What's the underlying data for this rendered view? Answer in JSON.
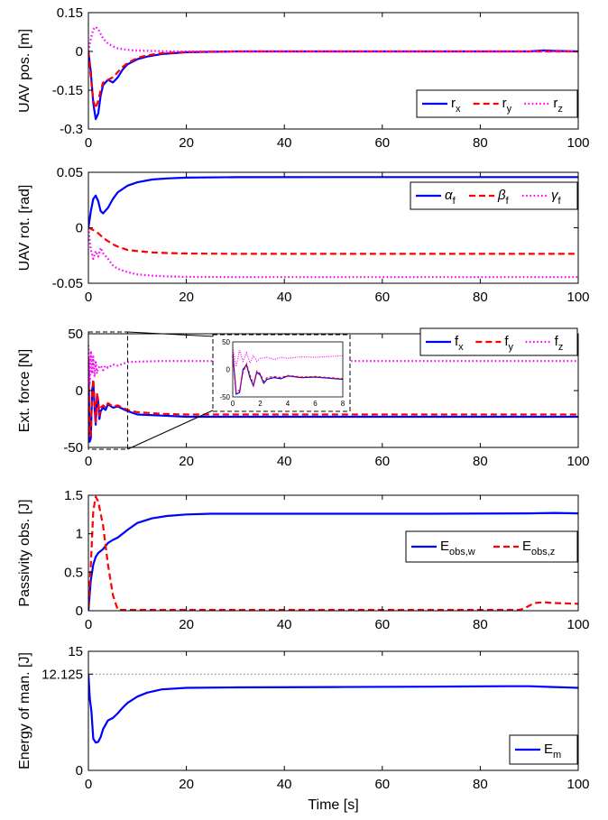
{
  "chart_data": [
    {
      "type": "line",
      "ylabel": "UAV pos. [m]",
      "xlabel": "",
      "xlim": [
        0,
        100
      ],
      "ylim": [
        -0.3,
        0.15
      ],
      "xticks": [
        "0",
        "20",
        "40",
        "60",
        "80",
        "100"
      ],
      "yticks": [
        "-0.3",
        "-0.15",
        "0",
        "0.15"
      ],
      "ytick_values": [
        -0.3,
        -0.15,
        0,
        0.15
      ],
      "legend_position": "bottom-right",
      "series": [
        {
          "name": "r",
          "sub": "x",
          "color": "#0000ff",
          "dash": "solid",
          "x": [
            0,
            0.5,
            1,
            1.5,
            2,
            2.5,
            3,
            4,
            5,
            6,
            7,
            8,
            10,
            12,
            15,
            20,
            30,
            50,
            70,
            90,
            93,
            95,
            100
          ],
          "y": [
            0,
            -0.08,
            -0.2,
            -0.262,
            -0.24,
            -0.17,
            -0.13,
            -0.11,
            -0.12,
            -0.1,
            -0.07,
            -0.05,
            -0.03,
            -0.02,
            -0.01,
            -0.003,
            0,
            0,
            0,
            0,
            0.004,
            0.002,
            0
          ]
        },
        {
          "name": "r",
          "sub": "y",
          "color": "#ff0000",
          "dash": "dashed",
          "x": [
            0,
            0.5,
            1,
            1.5,
            2,
            2.5,
            3,
            4,
            5,
            6,
            7,
            8,
            10,
            12,
            15,
            20,
            30,
            50,
            100
          ],
          "y": [
            0,
            -0.1,
            -0.19,
            -0.22,
            -0.19,
            -0.15,
            -0.12,
            -0.11,
            -0.1,
            -0.08,
            -0.06,
            -0.045,
            -0.025,
            -0.015,
            -0.007,
            -0.002,
            0,
            0,
            0
          ]
        },
        {
          "name": "r",
          "sub": "z",
          "color": "#ff00ff",
          "dash": "dotted",
          "x": [
            0,
            0.5,
            1,
            1.5,
            2,
            3,
            4,
            5,
            6,
            8,
            10,
            15,
            20,
            100
          ],
          "y": [
            0,
            0.05,
            0.085,
            0.095,
            0.085,
            0.05,
            0.03,
            0.02,
            0.012,
            0.006,
            0.003,
            0.001,
            0,
            0
          ]
        }
      ]
    },
    {
      "type": "line",
      "ylabel": "UAV rot. [rad]",
      "xlabel": "",
      "xlim": [
        0,
        100
      ],
      "ylim": [
        -0.05,
        0.05
      ],
      "xticks": [
        "0",
        "20",
        "40",
        "60",
        "80",
        "100"
      ],
      "yticks": [
        "-0.05",
        "0",
        "0.05"
      ],
      "ytick_values": [
        -0.05,
        0,
        0.05
      ],
      "legend_position": "top-right",
      "series": [
        {
          "name": "α",
          "sub": "f",
          "color": "#0000ff",
          "dash": "solid",
          "x": [
            0,
            0.5,
            1,
            1.5,
            2,
            2.5,
            3,
            4,
            5,
            6,
            8,
            10,
            13,
            16,
            20,
            30,
            50,
            100
          ],
          "y": [
            0,
            0.015,
            0.026,
            0.029,
            0.024,
            0.015,
            0.013,
            0.018,
            0.026,
            0.032,
            0.038,
            0.041,
            0.0435,
            0.0445,
            0.0452,
            0.0456,
            0.0457,
            0.0457
          ]
        },
        {
          "name": "β",
          "sub": "f",
          "color": "#ff0000",
          "dash": "dashed",
          "x": [
            0,
            1,
            2,
            3,
            4,
            5,
            6,
            8,
            10,
            13,
            16,
            20,
            30,
            100
          ],
          "y": [
            0,
            -0.002,
            -0.005,
            -0.009,
            -0.012,
            -0.015,
            -0.017,
            -0.02,
            -0.021,
            -0.0222,
            -0.0228,
            -0.0232,
            -0.0235,
            -0.0235
          ]
        },
        {
          "name": "γ",
          "sub": "f",
          "color": "#ff00ff",
          "dash": "dotted",
          "x": [
            0,
            0.5,
            1,
            1.5,
            2,
            2.5,
            3,
            4,
            5,
            6,
            8,
            10,
            13,
            16,
            20,
            30,
            100
          ],
          "y": [
            0,
            -0.02,
            -0.028,
            -0.021,
            -0.026,
            -0.018,
            -0.023,
            -0.028,
            -0.034,
            -0.037,
            -0.04,
            -0.042,
            -0.0432,
            -0.0438,
            -0.0442,
            -0.0445,
            -0.0445
          ]
        }
      ]
    },
    {
      "type": "line",
      "ylabel": "Ext. force [N]",
      "xlabel": "",
      "xlim": [
        0,
        100
      ],
      "ylim": [
        -50,
        50
      ],
      "xticks": [
        "0",
        "20",
        "40",
        "60",
        "80",
        "100"
      ],
      "yticks": [
        "-50",
        "0",
        "50"
      ],
      "ytick_values": [
        -50,
        0,
        50
      ],
      "legend_position": "top-right",
      "inset": {
        "xlim": [
          0,
          8
        ],
        "ylim": [
          -50,
          50
        ],
        "xticks": [
          "0",
          "2",
          "4",
          "6",
          "8"
        ],
        "yticks": [
          "-50",
          "0",
          "50"
        ]
      },
      "series": [
        {
          "name": "f",
          "sub": "x",
          "color": "#0000ff",
          "dash": "solid",
          "x": [
            0,
            0.25,
            0.5,
            0.75,
            1,
            1.25,
            1.5,
            1.75,
            2,
            2.25,
            2.5,
            3,
            3.5,
            4,
            5,
            6,
            8,
            10,
            15,
            20,
            30,
            100
          ],
          "y": [
            30,
            -45,
            -42,
            0,
            8,
            -15,
            -30,
            -5,
            -10,
            -25,
            -18,
            -15,
            -17,
            -12,
            -15,
            -14,
            -18,
            -21,
            -22,
            -23,
            -23,
            -23
          ]
        },
        {
          "name": "f",
          "sub": "y",
          "color": "#ff0000",
          "dash": "dashed",
          "x": [
            0,
            0.25,
            0.5,
            0.75,
            1,
            1.25,
            1.5,
            1.75,
            2,
            2.25,
            2.5,
            3,
            3.5,
            4,
            5,
            6,
            8,
            10,
            15,
            20,
            30,
            100
          ],
          "y": [
            30,
            -40,
            -38,
            -5,
            10,
            -10,
            -28,
            -3,
            -8,
            -22,
            -15,
            -13,
            -15,
            -11,
            -14,
            -13,
            -17,
            -19,
            -20.5,
            -21,
            -21,
            -21
          ]
        },
        {
          "name": "f",
          "sub": "z",
          "color": "#ff00ff",
          "dash": "dotted",
          "x": [
            0,
            0.25,
            0.5,
            0.75,
            1,
            1.25,
            1.5,
            1.75,
            2,
            2.5,
            3,
            3.5,
            4,
            5,
            6,
            8,
            10,
            15,
            20,
            30,
            100
          ],
          "y": [
            40,
            5,
            35,
            15,
            30,
            12,
            25,
            15,
            20,
            22,
            18,
            22,
            20,
            23,
            22,
            25,
            25.5,
            26,
            26,
            26,
            26
          ]
        }
      ]
    },
    {
      "type": "line",
      "ylabel": "Passivity obs. [J]",
      "xlabel": "",
      "xlim": [
        0,
        100
      ],
      "ylim": [
        0,
        1.5
      ],
      "xticks": [
        "0",
        "20",
        "40",
        "60",
        "80",
        "100"
      ],
      "yticks": [
        "0",
        "0.5",
        "1",
        "1.5"
      ],
      "ytick_values": [
        0,
        0.5,
        1,
        1.5
      ],
      "legend_position": "bottom-right",
      "series": [
        {
          "name": "E",
          "sub": "obs,w",
          "color": "#0000ff",
          "dash": "solid",
          "x": [
            0,
            0.5,
            1,
            1.5,
            2,
            3,
            4,
            5,
            6,
            8,
            10,
            13,
            16,
            20,
            25,
            30,
            50,
            70,
            90,
            95,
            100
          ],
          "y": [
            0,
            0.4,
            0.6,
            0.7,
            0.75,
            0.8,
            0.88,
            0.92,
            0.95,
            1.05,
            1.14,
            1.2,
            1.23,
            1.25,
            1.26,
            1.26,
            1.26,
            1.26,
            1.265,
            1.27,
            1.265
          ]
        },
        {
          "name": "E",
          "sub": "obs,z",
          "color": "#ff0000",
          "dash": "dashed",
          "x": [
            0,
            0.5,
            1,
            1.5,
            2,
            3,
            4,
            5,
            6,
            7,
            10,
            50,
            88,
            89,
            91,
            93,
            95,
            100
          ],
          "y": [
            0.05,
            0.6,
            1.3,
            1.48,
            1.42,
            1.1,
            0.6,
            0.2,
            0.01,
            0.01,
            0.01,
            0.01,
            0.01,
            0.03,
            0.1,
            0.11,
            0.1,
            0.09
          ]
        }
      ]
    },
    {
      "type": "line",
      "ylabel": "Energy of man. [J]",
      "xlabel": "Time [s]",
      "xlim": [
        0,
        100
      ],
      "ylim": [
        0,
        15
      ],
      "xticks": [
        "0",
        "20",
        "40",
        "60",
        "80",
        "100"
      ],
      "yticks": [
        "0",
        "12.125",
        "15"
      ],
      "ytick_values": [
        0,
        12.125,
        15
      ],
      "reference_line": {
        "y": 12.125,
        "color": "#999999"
      },
      "legend_position": "bottom-right",
      "series": [
        {
          "name": "E",
          "sub": "m",
          "color": "#0000ff",
          "dash": "solid",
          "x": [
            0,
            0.3,
            0.6,
            1,
            1.5,
            2,
            2.5,
            3,
            4,
            5,
            6,
            7,
            8,
            10,
            12,
            15,
            20,
            30,
            50,
            70,
            85,
            90,
            95,
            100
          ],
          "y": [
            12.125,
            9,
            7.5,
            4,
            3.5,
            3.6,
            4.2,
            5.2,
            6.3,
            6.6,
            7.2,
            7.9,
            8.5,
            9.3,
            9.8,
            10.2,
            10.4,
            10.45,
            10.5,
            10.55,
            10.6,
            10.6,
            10.5,
            10.4
          ]
        }
      ]
    }
  ]
}
